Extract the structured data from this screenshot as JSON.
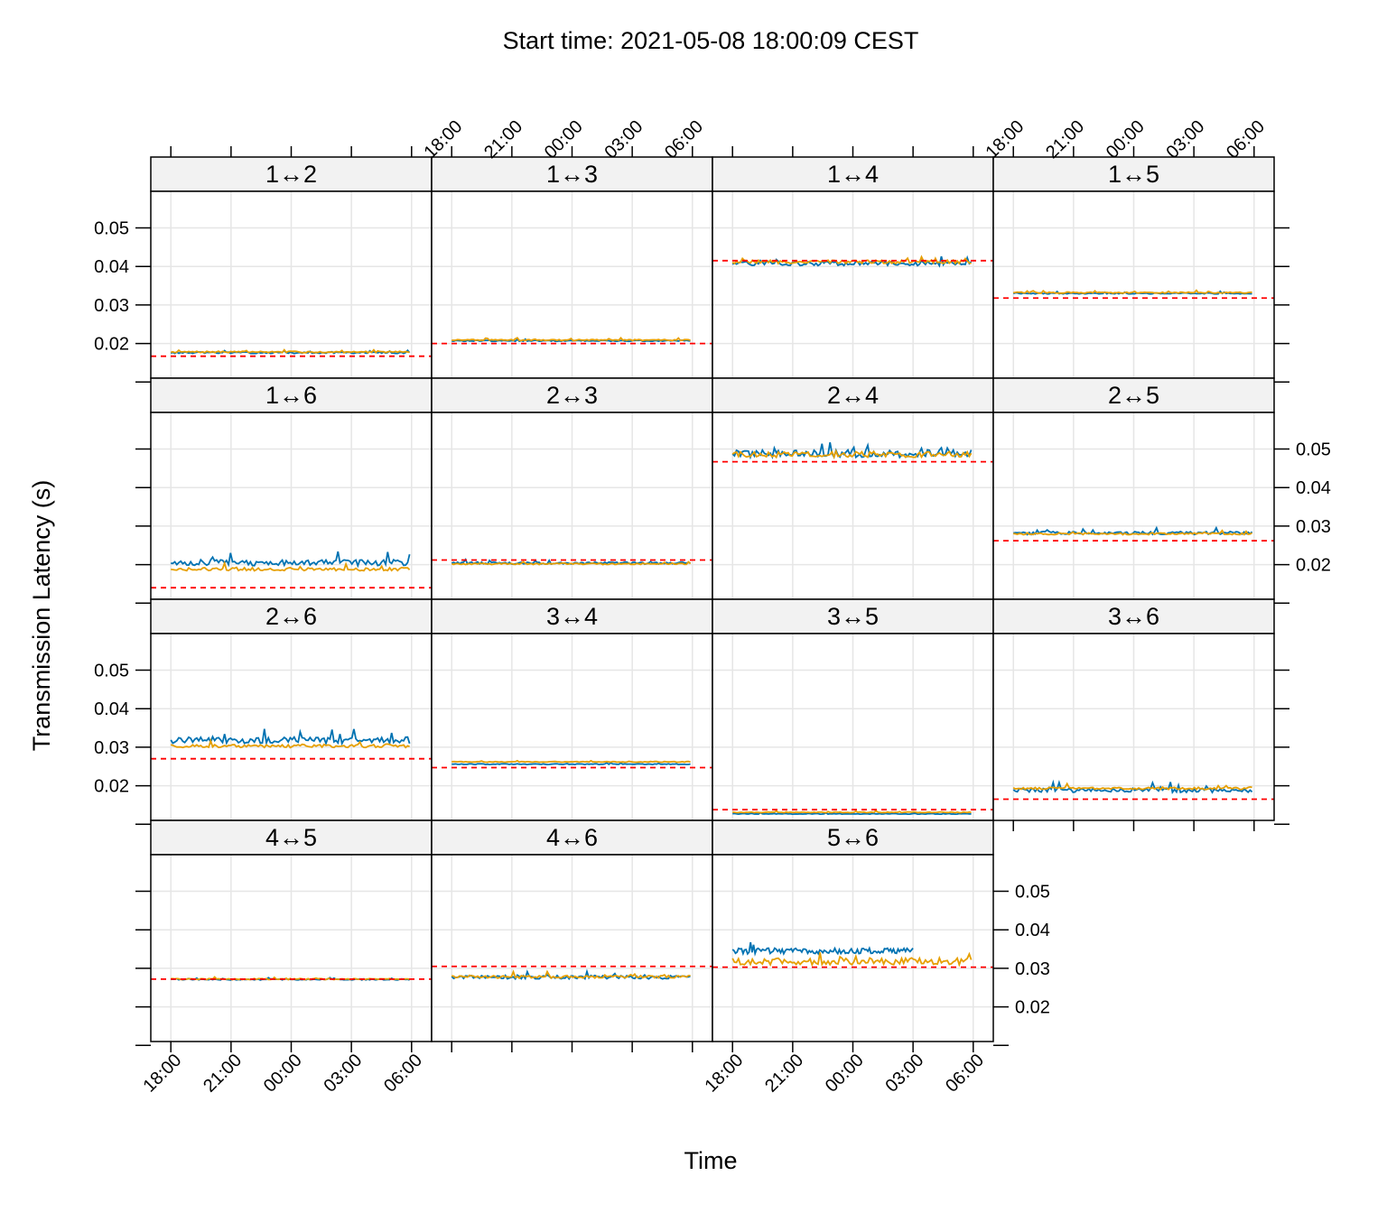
{
  "chart_data": {
    "type": "line",
    "title": "Start time: 2021-05-08 18:00:09 CEST",
    "xlabel": "Time",
    "ylabel": "Transmission Latency (s)",
    "grid": true,
    "legend": "none",
    "layout": {
      "columns": 4,
      "rows": 4
    },
    "x_axis": {
      "range_hours": [
        -1.0,
        13.0
      ],
      "ticks": [
        {
          "label": "18:00",
          "hour": 0
        },
        {
          "label": "21:00",
          "hour": 3
        },
        {
          "label": "00:00",
          "hour": 6
        },
        {
          "label": "03:00",
          "hour": 9
        },
        {
          "label": "06:00",
          "hour": 12
        }
      ]
    },
    "y_axis": {
      "range": [
        0.011,
        0.0595
      ],
      "ticks": [
        0.02,
        0.03,
        0.04,
        0.05
      ],
      "tick_labels": [
        "0.02",
        "0.03",
        "0.04",
        "0.05"
      ]
    },
    "colors": {
      "series_a": "#0072b2",
      "series_b": "#e69f00",
      "baseline": "#ff0000",
      "grid": "#e6e6e6",
      "strip": "#f2f2f2"
    },
    "panels": [
      {
        "label": "1↔2",
        "baseline": 0.0167,
        "a_level": 0.0176,
        "a_noise": 0.0004,
        "b_level": 0.0178,
        "b_noise": 0.0004,
        "a_end": 11.9,
        "b_end": 11.9
      },
      {
        "label": "1↔3",
        "baseline": 0.02,
        "a_level": 0.0207,
        "a_noise": 0.0003,
        "b_level": 0.0209,
        "b_noise": 0.0003,
        "a_end": 11.9,
        "b_end": 11.9
      },
      {
        "label": "1↔4",
        "baseline": 0.0415,
        "a_level": 0.0408,
        "a_noise": 0.0012,
        "b_level": 0.0412,
        "b_noise": 0.0009,
        "a_end": 11.9,
        "b_end": 11.9
      },
      {
        "label": "1↔5",
        "baseline": 0.0318,
        "a_level": 0.033,
        "a_noise": 0.0003,
        "b_level": 0.0332,
        "b_noise": 0.0003,
        "a_end": 11.9,
        "b_end": 11.9
      },
      {
        "label": "1↔6",
        "baseline": 0.014,
        "a_level": 0.0205,
        "a_noise": 0.0016,
        "b_level": 0.0188,
        "b_noise": 0.0008,
        "a_end": 11.9,
        "b_end": 11.9
      },
      {
        "label": "2↔3",
        "baseline": 0.0212,
        "a_level": 0.0204,
        "a_noise": 0.0006,
        "b_level": 0.0202,
        "b_noise": 0.0004,
        "a_end": 11.9,
        "b_end": 11.9
      },
      {
        "label": "2↔4",
        "baseline": 0.0467,
        "a_level": 0.0488,
        "a_noise": 0.002,
        "b_level": 0.0486,
        "b_noise": 0.0015,
        "a_end": 11.9,
        "b_end": 11.9
      },
      {
        "label": "2↔5",
        "baseline": 0.0262,
        "a_level": 0.0282,
        "a_noise": 0.0008,
        "b_level": 0.028,
        "b_noise": 0.0005,
        "a_end": 11.9,
        "b_end": 11.9
      },
      {
        "label": "2↔6",
        "baseline": 0.027,
        "a_level": 0.0318,
        "a_noise": 0.0017,
        "b_level": 0.0303,
        "b_noise": 0.0008,
        "a_end": 11.9,
        "b_end": 11.9
      },
      {
        "label": "3↔4",
        "baseline": 0.0247,
        "a_level": 0.0256,
        "a_noise": 0.0002,
        "b_level": 0.0262,
        "b_noise": 0.0002,
        "a_end": 11.9,
        "b_end": 11.9
      },
      {
        "label": "3↔5",
        "baseline": 0.0138,
        "a_level": 0.0127,
        "a_noise": 0.0002,
        "b_level": 0.0131,
        "b_noise": 0.0002,
        "a_end": 11.9,
        "b_end": 11.9
      },
      {
        "label": "3↔6",
        "baseline": 0.0165,
        "a_level": 0.0188,
        "a_noise": 0.0011,
        "b_level": 0.0193,
        "b_noise": 0.0006,
        "a_end": 11.9,
        "b_end": 11.9
      },
      {
        "label": "4↔5",
        "baseline": 0.0272,
        "a_level": 0.0271,
        "a_noise": 0.0003,
        "b_level": 0.0272,
        "b_noise": 0.0003,
        "a_end": 11.9,
        "b_end": 11.9
      },
      {
        "label": "4↔6",
        "baseline": 0.0305,
        "a_level": 0.0277,
        "a_noise": 0.0009,
        "b_level": 0.0278,
        "b_noise": 0.0007,
        "a_end": 11.9,
        "b_end": 11.9
      },
      {
        "label": "5↔6",
        "baseline": 0.0303,
        "a_level": 0.0345,
        "a_noise": 0.0015,
        "b_level": 0.0318,
        "b_noise": 0.0018,
        "a_end": 9.0,
        "b_end": 11.9
      }
    ]
  }
}
